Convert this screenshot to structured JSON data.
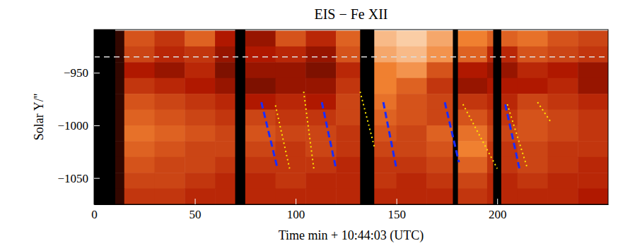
{
  "chart_data": {
    "type": "heatmap",
    "title": "EIS − Fe XII",
    "x_label": "Time min + 10:44:03 (UTC)",
    "y_label": "Solar Y/''",
    "xlim": [
      0,
      255
    ],
    "ylim": [
      -1075,
      -909
    ],
    "xticks": [
      0,
      50,
      100,
      150,
      200
    ],
    "yticks": [
      {
        "value": -950,
        "label": "−950"
      },
      {
        "value": -1000,
        "label": "−1000"
      },
      {
        "value": -1050,
        "label": "−1050"
      }
    ],
    "x_edges": [
      0,
      15,
      30,
      45,
      60,
      75,
      90,
      105,
      120,
      135,
      150,
      165,
      180,
      195,
      210,
      225,
      240,
      255
    ],
    "y_edges": [
      -910,
      -925,
      -940,
      -955,
      -970,
      -985,
      -1000,
      -1015,
      -1030,
      -1045,
      -1060,
      -1075
    ],
    "cells": [
      [
        10,
        55,
        45,
        60,
        35,
        30,
        55,
        40,
        60,
        85,
        90,
        80,
        70,
        60,
        65,
        55,
        50
      ],
      [
        10,
        50,
        40,
        45,
        30,
        35,
        40,
        30,
        55,
        80,
        85,
        75,
        60,
        40,
        55,
        50,
        45
      ],
      [
        10,
        35,
        30,
        40,
        25,
        30,
        30,
        25,
        40,
        70,
        75,
        55,
        35,
        30,
        40,
        35,
        30
      ],
      [
        10,
        45,
        40,
        35,
        30,
        25,
        30,
        30,
        45,
        70,
        60,
        45,
        30,
        35,
        35,
        40,
        30
      ],
      [
        10,
        55,
        50,
        45,
        40,
        35,
        40,
        35,
        50,
        65,
        55,
        50,
        45,
        40,
        50,
        45,
        40
      ],
      [
        10,
        60,
        55,
        50,
        45,
        50,
        45,
        45,
        50,
        60,
        55,
        50,
        55,
        45,
        55,
        50,
        45
      ],
      [
        10,
        65,
        60,
        55,
        50,
        55,
        50,
        50,
        45,
        55,
        50,
        60,
        65,
        50,
        55,
        50,
        45
      ],
      [
        10,
        60,
        55,
        50,
        50,
        50,
        45,
        50,
        45,
        50,
        50,
        55,
        70,
        45,
        50,
        45,
        45
      ],
      [
        10,
        55,
        50,
        50,
        45,
        45,
        45,
        45,
        40,
        45,
        45,
        50,
        60,
        45,
        50,
        45,
        40
      ],
      [
        10,
        50,
        50,
        45,
        40,
        40,
        45,
        40,
        40,
        45,
        40,
        45,
        50,
        40,
        45,
        40,
        40
      ],
      [
        10,
        45,
        45,
        40,
        40,
        40,
        40,
        40,
        40,
        40,
        40,
        40,
        45,
        40,
        40,
        40,
        35
      ]
    ],
    "color_range": [
      0,
      100
    ],
    "data_gaps": [
      [
        0,
        10.5
      ],
      [
        70,
        75
      ],
      [
        132,
        139
      ],
      [
        178,
        180.5
      ],
      [
        198,
        202
      ]
    ],
    "hline": -935,
    "lines": [
      {
        "color": "#1a2cff",
        "line_style": "dashed",
        "x": [
          83,
          91
        ],
        "y": [
          -978,
          -1041
        ]
      },
      {
        "color": "#1a2cff",
        "line_style": "dashed",
        "x": [
          113,
          120
        ],
        "y": [
          -978,
          -1041
        ]
      },
      {
        "color": "#1a2cff",
        "line_style": "dashed",
        "x": [
          143.5,
          150
        ],
        "y": [
          -978,
          -1041
        ]
      },
      {
        "color": "#1a2cff",
        "line_style": "dashed",
        "x": [
          174,
          181
        ],
        "y": [
          -978,
          -1035
        ]
      },
      {
        "color": "#1a2cff",
        "line_style": "dashed",
        "x": [
          204,
          211
        ],
        "y": [
          -980,
          -1041
        ]
      },
      {
        "color": "#ffe600",
        "line_style": "dotted",
        "x": [
          90,
          97
        ],
        "y": [
          -981,
          -1041
        ]
      },
      {
        "color": "#ffe600",
        "line_style": "dotted",
        "x": [
          104,
          109
        ],
        "y": [
          -968,
          -1041
        ]
      },
      {
        "color": "#ffe600",
        "line_style": "dotted",
        "x": [
          132,
          139
        ],
        "y": [
          -968,
          -1020
        ]
      },
      {
        "color": "#ffe600",
        "line_style": "dotted",
        "x": [
          183,
          200
        ],
        "y": [
          -980,
          -1041
        ]
      },
      {
        "color": "#ffe600",
        "line_style": "dotted",
        "x": [
          205,
          215
        ],
        "y": [
          -980,
          -1041
        ]
      },
      {
        "color": "#ffe600",
        "line_style": "dotted",
        "x": [
          220,
          227
        ],
        "y": [
          -978,
          -998
        ]
      }
    ]
  }
}
